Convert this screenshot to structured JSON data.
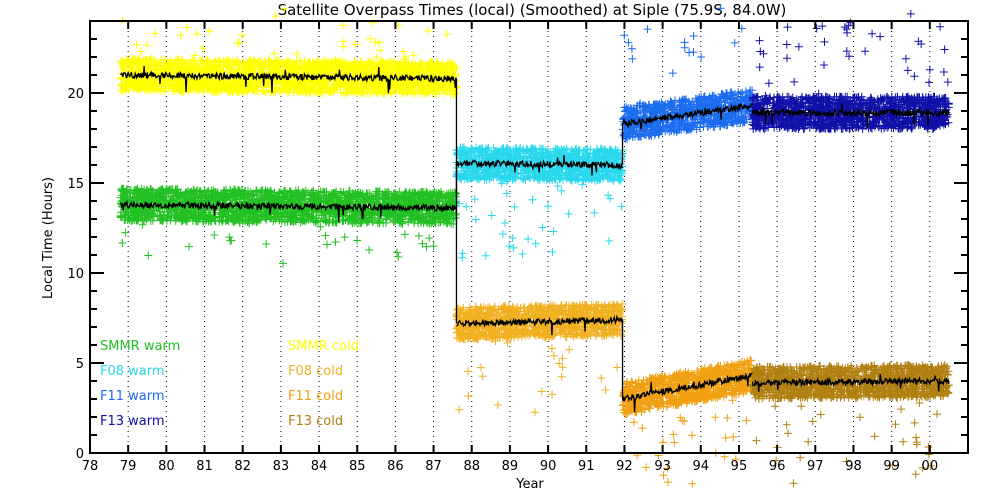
{
  "chart_data": {
    "type": "scatter",
    "title": "Satellite Overpass Times (local) (Smoothed) at Siple (75.9S, 84.0W)",
    "xlabel": "Year",
    "ylabel": "Local Time (Hours)",
    "xlim": [
      78,
      101
    ],
    "ylim": [
      0,
      24
    ],
    "xticks": [
      "78",
      "79",
      "80",
      "81",
      "82",
      "83",
      "84",
      "85",
      "86",
      "87",
      "88",
      "89",
      "90",
      "91",
      "92",
      "93",
      "94",
      "95",
      "96",
      "97",
      "98",
      "99",
      "00"
    ],
    "yticks": [
      0,
      5,
      10,
      15,
      20
    ],
    "grid": "vertical dotted",
    "legend_placement": "bottom-left",
    "series": [
      {
        "name": "SMMR warm",
        "color": "#22c022",
        "start": 78.8,
        "end": 87.6,
        "mean_start": 13.8,
        "mean_end": 13.6,
        "spread": 0.9
      },
      {
        "name": "SMMR cold",
        "color": "#ffff00",
        "start": 78.8,
        "end": 87.6,
        "mean_start": 21.0,
        "mean_end": 20.8,
        "spread": 0.9
      },
      {
        "name": "F08 warm",
        "color": "#2ad8ee",
        "start": 87.6,
        "end": 91.95,
        "mean_start": 16.1,
        "mean_end": 16.0,
        "spread": 0.9
      },
      {
        "name": "F08 cold",
        "color": "#f0b020",
        "start": 87.6,
        "end": 91.95,
        "mean_start": 7.2,
        "mean_end": 7.4,
        "spread": 0.9
      },
      {
        "name": "F11 warm",
        "color": "#1c6cf0",
        "start": 91.95,
        "end": 95.35,
        "mean_start": 18.3,
        "mean_end": 19.3,
        "spread": 0.9
      },
      {
        "name": "F11 cold",
        "color": "#f0a010",
        "start": 91.95,
        "end": 95.35,
        "mean_start": 3.0,
        "mean_end": 4.3,
        "spread": 0.9
      },
      {
        "name": "F13 warm",
        "color": "#1010a8",
        "start": 95.35,
        "end": 100.5,
        "mean_start": 18.9,
        "mean_end": 18.9,
        "spread": 0.9
      },
      {
        "name": "F13 cold",
        "color": "#b08010",
        "start": 95.35,
        "end": 100.5,
        "mean_start": 3.9,
        "mean_end": 4.0,
        "spread": 0.9
      }
    ]
  }
}
